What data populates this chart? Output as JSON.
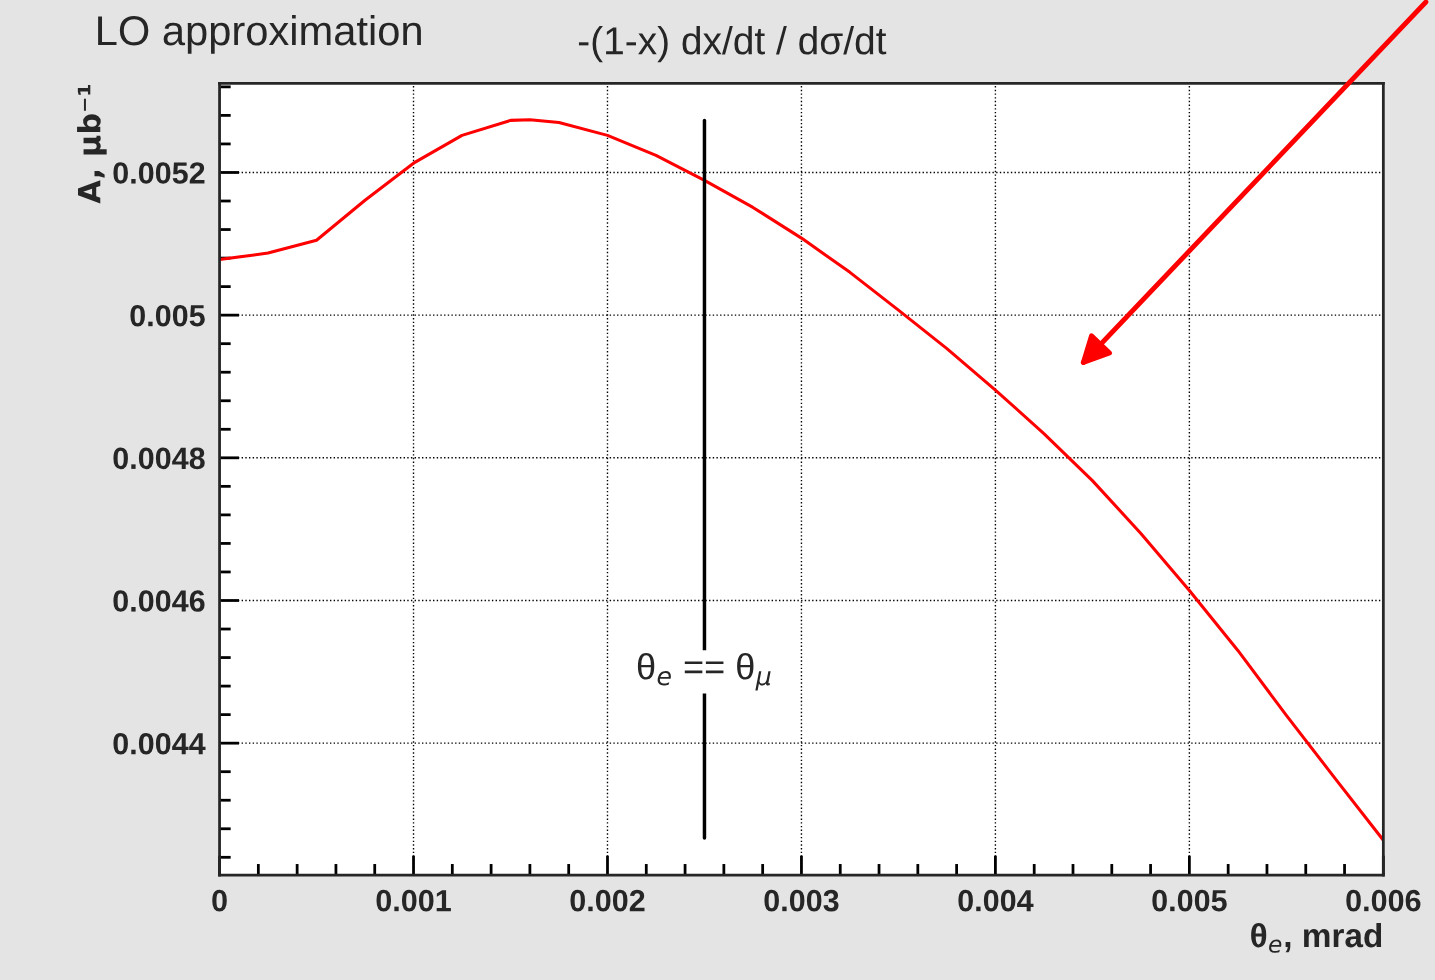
{
  "chart_data": {
    "type": "line",
    "title": "LO approximation",
    "xlabel": "θ$_{e}$, mrad",
    "ylabel": "A, μb⁻¹",
    "annotations": [
      "-(1-x) dx/dt / dσ/dt"
    ],
    "x": [
      0,
      0.00025,
      0.0005,
      0.00075,
      0.001,
      0.00125,
      0.0015,
      0.0016,
      0.00175,
      0.002,
      0.00225,
      0.0025,
      0.00275,
      0.003,
      0.00325,
      0.0035,
      0.00375,
      0.004,
      0.00425,
      0.0045,
      0.00475,
      0.005,
      0.00525,
      0.0055,
      0.00575,
      0.006
    ],
    "series": [
      {
        "color": "#ff0000",
        "values": [
          0.005078,
          0.005087,
          0.005105,
          0.005161,
          0.005213,
          0.005252,
          0.005273,
          0.005274,
          0.00527,
          0.005252,
          0.005224,
          0.005189,
          0.005151,
          0.005108,
          0.00506,
          0.005007,
          0.004953,
          0.004895,
          0.004834,
          0.004768,
          0.004694,
          0.004614,
          0.00453,
          0.004439,
          0.004351,
          0.004264
        ]
      }
    ],
    "xlim": [
      0,
      0.006
    ],
    "ylim": [
      0.004215,
      0.005325
    ],
    "xticks": [
      0,
      0.001,
      0.002,
      0.003,
      0.004,
      0.005,
      0.006
    ],
    "yticks": [
      0.0044,
      0.0046,
      0.0048,
      0.005,
      0.0052
    ],
    "ref_lines": [
      {
        "axis": "x",
        "value": 0.0025,
        "label": "θ$_{e}$ == θ$_{μ}$",
        "color": "#000000"
      }
    ],
    "grid": true,
    "line_style": "solid",
    "marker": "none"
  }
}
